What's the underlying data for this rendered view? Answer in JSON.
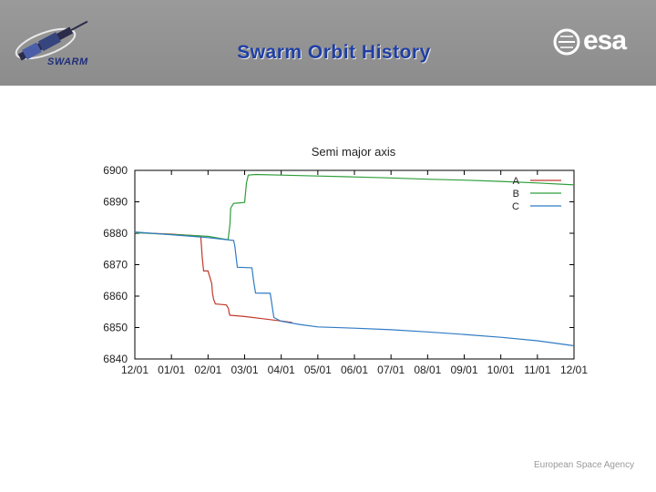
{
  "header": {
    "title": "Swarm Orbit History",
    "swarm_logo_text": "SWARM",
    "esa_logo_text": "esa"
  },
  "footer": {
    "agency": "European Space Agency"
  },
  "colors": {
    "header_bg": "#919191",
    "title": "#1f3fa3",
    "A": "#c0392b",
    "B": "#2e9e3a",
    "C": "#2f7bc4"
  },
  "chart_data": {
    "type": "line",
    "title": "Semi major axis",
    "xlabel": "",
    "ylabel": "",
    "x_ticks": [
      "12/01",
      "01/01",
      "02/01",
      "03/01",
      "04/01",
      "05/01",
      "06/01",
      "07/01",
      "08/01",
      "09/01",
      "10/01",
      "11/01",
      "12/01"
    ],
    "y_ticks": [
      "6900",
      "6890",
      "6880",
      "6870",
      "6860",
      "6850",
      "6840"
    ],
    "xlim": [
      0,
      12
    ],
    "ylim": [
      6840,
      6900
    ],
    "legend_position": "top-right",
    "series": [
      {
        "name": "A",
        "color": "#c0392b",
        "points": [
          [
            0,
            6880.2
          ],
          [
            1.0,
            6879.7
          ],
          [
            1.8,
            6879.1
          ],
          [
            1.82,
            6876.0
          ],
          [
            1.84,
            6872.5
          ],
          [
            1.88,
            6868.0
          ],
          [
            2.0,
            6868.0
          ],
          [
            2.1,
            6864.0
          ],
          [
            2.12,
            6861.0
          ],
          [
            2.15,
            6859.0
          ],
          [
            2.2,
            6857.5
          ],
          [
            2.5,
            6857.2
          ],
          [
            2.56,
            6856.0
          ],
          [
            2.58,
            6854.5
          ],
          [
            2.6,
            6853.9
          ],
          [
            3.0,
            6853.5
          ],
          [
            3.5,
            6852.8
          ],
          [
            4.0,
            6852.1
          ],
          [
            4.3,
            6851.6
          ]
        ]
      },
      {
        "name": "B",
        "color": "#2e9e3a",
        "points": [
          [
            0,
            6880.2
          ],
          [
            1.0,
            6879.6
          ],
          [
            2.0,
            6879.0
          ],
          [
            2.5,
            6878.0
          ],
          [
            2.55,
            6878.0
          ],
          [
            2.6,
            6883.0
          ],
          [
            2.62,
            6888.0
          ],
          [
            2.7,
            6889.5
          ],
          [
            2.8,
            6889.6
          ],
          [
            3.0,
            6889.8
          ],
          [
            3.05,
            6896.0
          ],
          [
            3.1,
            6898.5
          ],
          [
            3.3,
            6898.7
          ],
          [
            4.0,
            6898.5
          ],
          [
            5.0,
            6898.2
          ],
          [
            6.0,
            6897.9
          ],
          [
            7.0,
            6897.6
          ],
          [
            8.0,
            6897.2
          ],
          [
            9.0,
            6896.9
          ],
          [
            10.0,
            6896.5
          ],
          [
            11.0,
            6896.0
          ],
          [
            12.0,
            6895.4
          ]
        ]
      },
      {
        "name": "C",
        "color": "#2f7bc4",
        "points": [
          [
            0,
            6880.4
          ],
          [
            1.0,
            6879.5
          ],
          [
            2.0,
            6878.6
          ],
          [
            2.7,
            6877.7
          ],
          [
            2.73,
            6876.0
          ],
          [
            2.8,
            6869.2
          ],
          [
            3.2,
            6869.0
          ],
          [
            3.25,
            6864.5
          ],
          [
            3.3,
            6861.0
          ],
          [
            3.7,
            6860.9
          ],
          [
            3.75,
            6857.0
          ],
          [
            3.8,
            6853.2
          ],
          [
            4.0,
            6852.0
          ],
          [
            4.5,
            6851.0
          ],
          [
            5.0,
            6850.2
          ],
          [
            6.0,
            6849.8
          ],
          [
            7.0,
            6849.3
          ],
          [
            8.0,
            6848.6
          ],
          [
            9.0,
            6847.8
          ],
          [
            10.0,
            6846.9
          ],
          [
            11.0,
            6845.8
          ],
          [
            12.0,
            6844.2
          ]
        ]
      }
    ]
  }
}
